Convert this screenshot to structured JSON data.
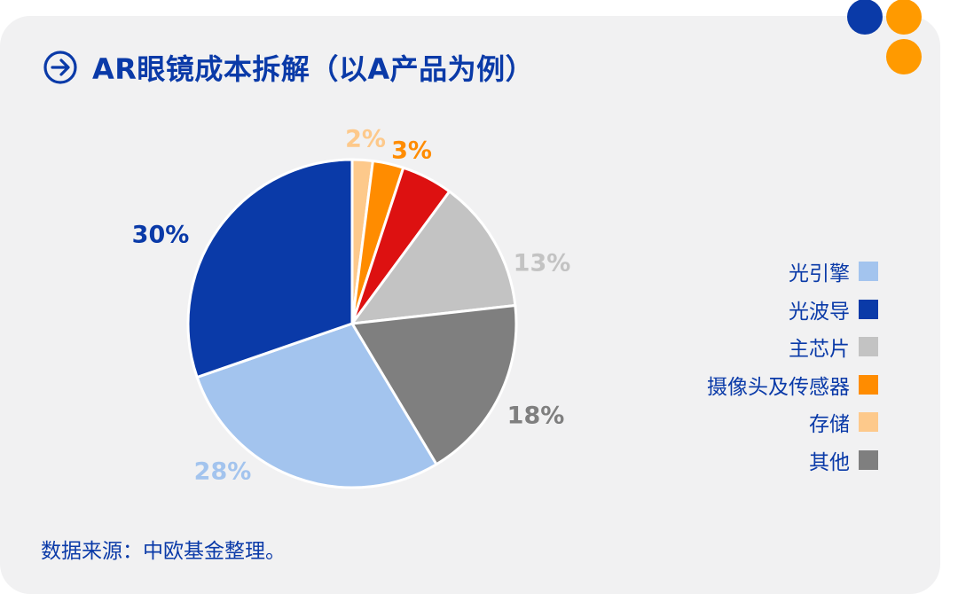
{
  "header": {
    "title": "AR眼镜成本拆解（以A产品为例）",
    "icon": "arrow-right-circle-icon"
  },
  "colors": {
    "accent": "#0a3aa8",
    "dot_blue": "#0a3aa8",
    "dot_orange": "#ff9a00"
  },
  "chart_data": {
    "type": "pie",
    "title": "AR眼镜成本拆解（以A产品为例）",
    "start_category": "存储",
    "slices": [
      {
        "name": "存储",
        "value": 2,
        "label": "2%",
        "color": "#fdc98b",
        "show_label": true
      },
      {
        "name": "摄像头及传感器",
        "value": 3,
        "label": "3%",
        "color": "#ff8c00",
        "show_label": true
      },
      {
        "name": "",
        "value": 5,
        "label": "",
        "color": "#dd1111",
        "show_label": false
      },
      {
        "name": "主芯片",
        "value": 13,
        "label": "13%",
        "color": "#c3c3c3",
        "show_label": true
      },
      {
        "name": "其他",
        "value": 18,
        "label": "18%",
        "color": "#7f7f7f",
        "show_label": true
      },
      {
        "name": "光引擎",
        "value": 28,
        "label": "28%",
        "color": "#a3c4ee",
        "show_label": true
      },
      {
        "name": "光波导",
        "value": 30,
        "label": "30%",
        "color": "#0a3aa8",
        "show_label": true
      }
    ],
    "legend": {
      "placement": "right",
      "items": [
        {
          "label": "光引擎",
          "color": "#a3c4ee"
        },
        {
          "label": "光波导",
          "color": "#0a3aa8"
        },
        {
          "label": "主芯片",
          "color": "#c3c3c3"
        },
        {
          "label": "摄像头及传感器",
          "color": "#ff8c00"
        },
        {
          "label": "存储",
          "color": "#fdc98b"
        },
        {
          "label": "其他",
          "color": "#7f7f7f"
        }
      ]
    }
  },
  "footer": {
    "source": "数据来源：中欧基金整理。"
  }
}
